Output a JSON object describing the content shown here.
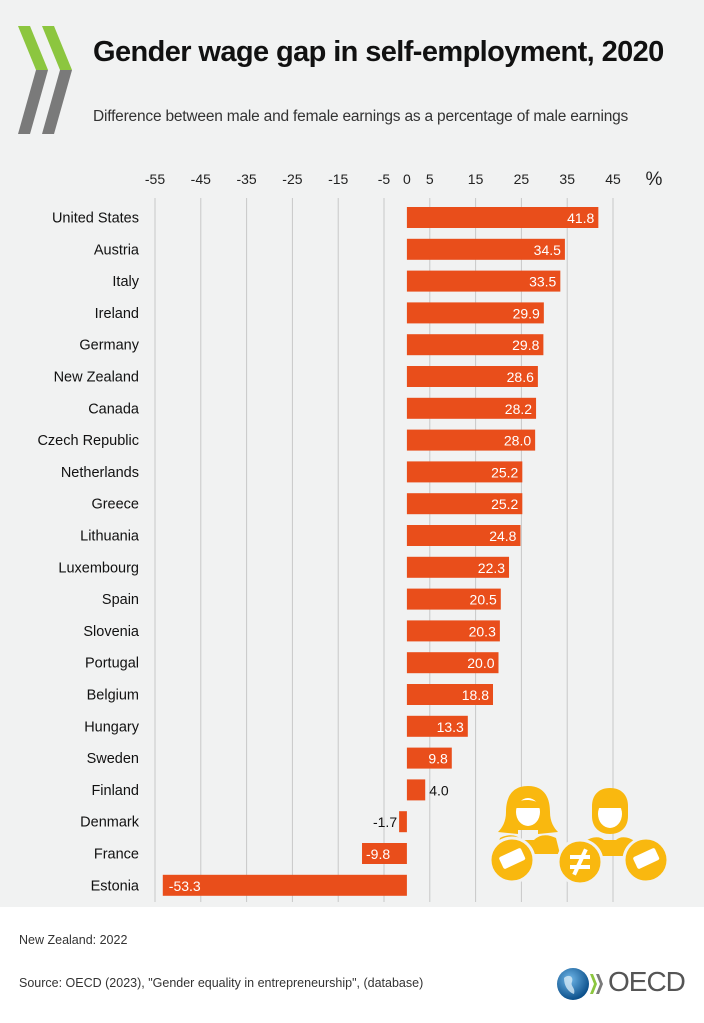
{
  "header": {
    "title_highlight": "Gender wage gap",
    "title_rest": " in self-employment, 2020",
    "subtitle": "Difference between male and female earnings as a percentage of male earnings"
  },
  "footer": {
    "note": "New Zealand: 2022",
    "source": "Source: OECD (2023), \"Gender equality in entrepreneurship\", (database)",
    "logo_text": "OECD"
  },
  "colors": {
    "bar": "#e94e1b",
    "accent": "#f9b80f",
    "chevron_green": "#8cc63f",
    "chevron_gray": "#7a7a7a"
  },
  "chart_data": {
    "type": "bar",
    "orientation": "horizontal",
    "title": "Gender wage gap in self-employment, 2020",
    "subtitle": "Difference between male and female earnings as a percentage of male earnings",
    "unit_label": "%",
    "xlim": [
      -55,
      45
    ],
    "ticks": [
      "-55",
      "-45",
      "-35",
      "-25",
      "-15",
      "-5",
      "0",
      "5",
      "15",
      "25",
      "35",
      "45"
    ],
    "tick_values": [
      -55,
      -45,
      -35,
      -25,
      -15,
      -5,
      0,
      5,
      15,
      25,
      35,
      45
    ],
    "gridlines": [
      -55,
      -45,
      -35,
      -25,
      -15,
      -5,
      5,
      15,
      25,
      35,
      45
    ],
    "categories": [
      "United States",
      "Austria",
      "Italy",
      "Ireland",
      "Germany",
      "New Zealand",
      "Canada",
      "Czech Republic",
      "Netherlands",
      "Greece",
      "Lithuania",
      "Luxembourg",
      "Spain",
      "Slovenia",
      "Portugal",
      "Belgium",
      "Hungary",
      "Sweden",
      "Finland",
      "Denmark",
      "France",
      "Estonia"
    ],
    "values": [
      41.8,
      34.5,
      33.5,
      29.9,
      29.8,
      28.6,
      28.2,
      28.0,
      25.2,
      25.2,
      24.8,
      22.3,
      20.5,
      20.3,
      20.0,
      18.8,
      13.3,
      9.8,
      4.0,
      -1.7,
      -9.8,
      -53.3
    ],
    "labels": [
      "41.8",
      "34.5",
      "33.5",
      "29.9",
      "29.8",
      "28.6",
      "28.2",
      "28.0",
      "25.2",
      "25.2",
      "24.8",
      "22.3",
      "20.5",
      "20.3",
      "20.0",
      "18.8",
      "13.3",
      "9.8",
      "4.0",
      "-1.7",
      "-9.8",
      "-53.3"
    ]
  }
}
